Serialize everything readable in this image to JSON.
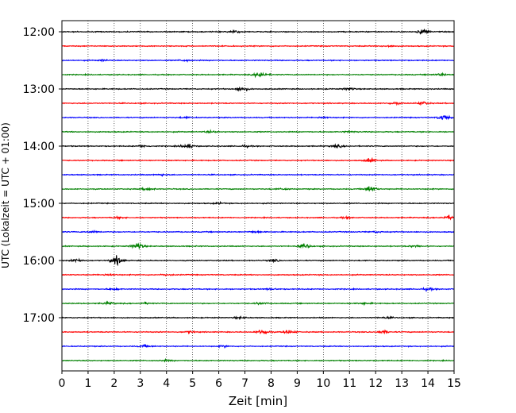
{
  "chart_data": {
    "type": "line",
    "title": "",
    "xlabel": "Zeit  [min]",
    "ylabel": "UTC (Lokalzeit = UTC + 01:00)",
    "xlim": [
      0,
      15
    ],
    "x_ticks": [
      "0",
      "1",
      "2",
      "3",
      "4",
      "5",
      "6",
      "7",
      "8",
      "9",
      "10",
      "11",
      "12",
      "13",
      "14",
      "15"
    ],
    "y_ticks": [
      "12:00",
      "13:00",
      "14:00",
      "15:00",
      "16:00",
      "17:00"
    ],
    "grid": {
      "x_dotted": true
    },
    "trace_minutes": 15,
    "colors_cycle": [
      "#000000",
      "#ff0000",
      "#0000ff",
      "#008000"
    ],
    "series": [
      {
        "start": "12:00",
        "events": [
          [
            6.6,
            0.5
          ],
          [
            13.8,
            1.2
          ]
        ]
      },
      {
        "start": "12:15",
        "events": [
          [
            12.5,
            0.4
          ]
        ]
      },
      {
        "start": "12:30",
        "events": [
          [
            4.7,
            0.4
          ],
          [
            1.6,
            0.3
          ]
        ]
      },
      {
        "start": "12:45",
        "events": [
          [
            7.6,
            1.4
          ],
          [
            14.5,
            0.5
          ]
        ]
      },
      {
        "start": "13:00",
        "events": [
          [
            6.9,
            1.1
          ],
          [
            11.0,
            0.5
          ]
        ]
      },
      {
        "start": "13:15",
        "events": [
          [
            12.7,
            0.5
          ],
          [
            13.8,
            0.7
          ]
        ]
      },
      {
        "start": "13:30",
        "events": [
          [
            14.6,
            1.2
          ],
          [
            4.7,
            0.3
          ],
          [
            10.0,
            0.4
          ]
        ]
      },
      {
        "start": "13:45",
        "events": [
          [
            5.7,
            0.4
          ],
          [
            11.0,
            0.3
          ]
        ]
      },
      {
        "start": "14:00",
        "events": [
          [
            4.8,
            1.2
          ],
          [
            10.5,
            0.6
          ],
          [
            7.0,
            0.4
          ],
          [
            3.1,
            0.4
          ]
        ]
      },
      {
        "start": "14:15",
        "events": [
          [
            11.8,
            0.8
          ]
        ]
      },
      {
        "start": "14:30",
        "events": [
          [
            3.8,
            0.4
          ]
        ]
      },
      {
        "start": "14:45",
        "events": [
          [
            3.3,
            0.6
          ],
          [
            11.8,
            1.3
          ],
          [
            8.5,
            0.3
          ]
        ]
      },
      {
        "start": "15:00",
        "events": [
          [
            6.0,
            0.3
          ]
        ]
      },
      {
        "start": "15:15",
        "events": [
          [
            2.2,
            0.5
          ],
          [
            14.8,
            0.9
          ],
          [
            10.9,
            0.4
          ]
        ]
      },
      {
        "start": "15:30",
        "events": [
          [
            1.2,
            0.4
          ],
          [
            7.4,
            0.4
          ],
          [
            12.0,
            0.3
          ]
        ]
      },
      {
        "start": "15:45",
        "events": [
          [
            2.9,
            1.3
          ],
          [
            9.3,
            0.9
          ],
          [
            13.5,
            0.4
          ]
        ]
      },
      {
        "start": "16:00",
        "events": [
          [
            2.1,
            2.0
          ],
          [
            0.6,
            0.7
          ],
          [
            8.1,
            0.5
          ]
        ]
      },
      {
        "start": "16:15",
        "events": [
          [
            1.8,
            0.4
          ],
          [
            4.0,
            0.3
          ]
        ]
      },
      {
        "start": "16:30",
        "events": [
          [
            2.0,
            0.4
          ],
          [
            14.0,
            0.5
          ],
          [
            8.0,
            0.3
          ]
        ]
      },
      {
        "start": "16:45",
        "events": [
          [
            1.8,
            0.5
          ],
          [
            3.2,
            0.4
          ],
          [
            7.6,
            0.4
          ],
          [
            11.6,
            0.4
          ]
        ]
      },
      {
        "start": "17:00",
        "events": [
          [
            6.8,
            0.4
          ],
          [
            12.4,
            0.3
          ]
        ]
      },
      {
        "start": "17:15",
        "events": [
          [
            7.7,
            1.2
          ],
          [
            8.7,
            0.8
          ],
          [
            12.3,
            0.6
          ],
          [
            4.9,
            0.4
          ]
        ]
      },
      {
        "start": "17:30",
        "events": [
          [
            3.2,
            0.6
          ],
          [
            6.2,
            0.3
          ]
        ]
      },
      {
        "start": "17:45",
        "events": [
          [
            4.0,
            0.3
          ]
        ]
      }
    ]
  }
}
